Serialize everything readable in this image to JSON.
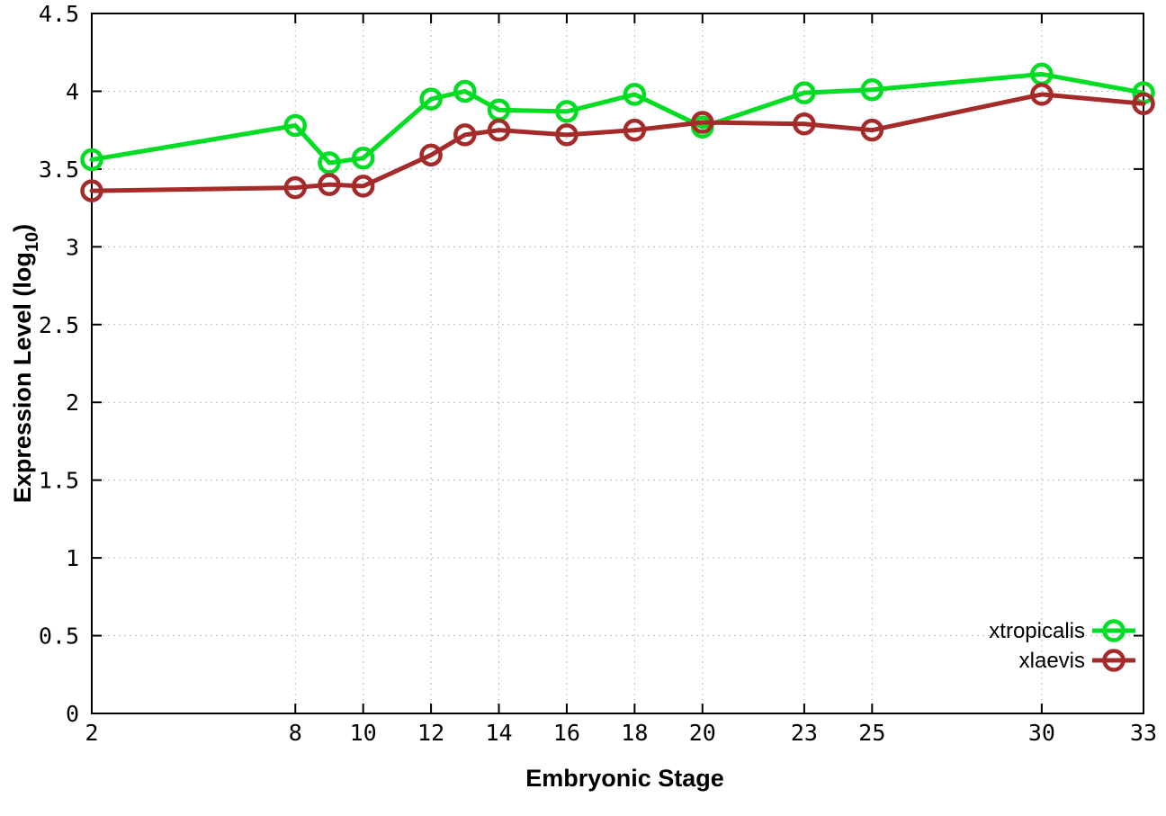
{
  "chart_data": {
    "type": "line",
    "title": "",
    "xlabel": "Embryonic Stage",
    "ylabel": "Expression Level (log10)",
    "ylabel_parts": {
      "pre": "Expression Level (log",
      "sub": "10",
      "post": ")"
    },
    "x": [
      2,
      8,
      9,
      10,
      12,
      13,
      14,
      16,
      18,
      20,
      23,
      25,
      30,
      33
    ],
    "series": [
      {
        "name": "xtropicalis",
        "color": "#00dd22",
        "values": [
          3.56,
          3.78,
          3.54,
          3.57,
          3.95,
          4.0,
          3.88,
          3.87,
          3.98,
          3.77,
          3.99,
          4.01,
          4.11,
          3.99
        ]
      },
      {
        "name": "xlaevis",
        "color": "#a52a2a",
        "values": [
          3.36,
          3.38,
          3.4,
          3.39,
          3.59,
          3.72,
          3.75,
          3.72,
          3.75,
          3.8,
          3.79,
          3.75,
          3.98,
          3.92
        ]
      }
    ],
    "xlim": [
      2,
      33
    ],
    "ylim": [
      0,
      4.5
    ],
    "x_ticks": [
      2,
      8,
      10,
      12,
      14,
      16,
      18,
      20,
      23,
      25,
      30,
      33
    ],
    "y_ticks": [
      0,
      0.5,
      1,
      1.5,
      2,
      2.5,
      3,
      3.5,
      4,
      4.5
    ],
    "grid": true,
    "legend_position": "inside-right-lower",
    "legend_entries": [
      "xtropicalis",
      "xlaevis"
    ]
  },
  "colors": {
    "background": "#ffffff",
    "border": "#000000",
    "grid": "#bebebe",
    "text": "#000000"
  }
}
